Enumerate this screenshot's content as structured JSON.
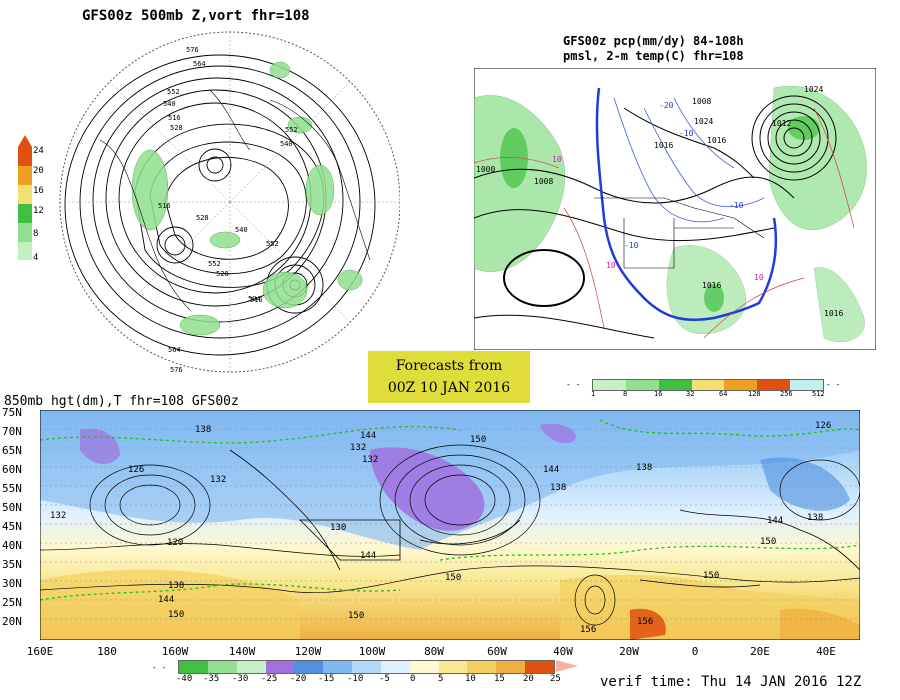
{
  "panels": {
    "top_left": {
      "title": "GFS00z  500mb Z,vort   fhr=108",
      "contour_labels": [
        "576",
        "564",
        "552",
        "540",
        "516",
        "528",
        "552",
        "540",
        "516",
        "528",
        "540",
        "552",
        "564",
        "552",
        "528",
        "516",
        "504",
        "576"
      ],
      "colorbar": {
        "ticks": [
          "24",
          "20",
          "16",
          "12",
          "8",
          "4"
        ],
        "colors": [
          "#e05010",
          "#f0a020",
          "#f4e070",
          "#40c040",
          "#90e090",
          "#c0f0c0"
        ]
      }
    },
    "top_right": {
      "title_line1": "GFS00z pcp(mm/dy) 84-108h",
      "title_line2": "pmsl, 2-m temp(C)  fhr=108",
      "contour_labels": [
        "1008",
        "1012",
        "1024",
        "1016",
        "1000",
        "1008",
        "1016",
        "1024",
        "1016",
        "1016",
        "-10",
        "-20",
        "-10",
        "-10",
        "10",
        "10",
        "10"
      ],
      "colorbar": {
        "ticks": [
          "1",
          "8",
          "16",
          "32",
          "64",
          "128",
          "256",
          "512"
        ],
        "colors": [
          "#c8f0c8",
          "#90e090",
          "#40c040",
          "#f4e070",
          "#f0a020",
          "#e05010",
          "#c0f0f0"
        ]
      }
    },
    "bottom": {
      "title": "850mb hgt(dm),T  fhr=108 GFS00z",
      "lat_labels": [
        "75N",
        "70N",
        "65N",
        "60N",
        "55N",
        "50N",
        "45N",
        "40N",
        "35N",
        "30N",
        "25N",
        "20N"
      ],
      "lon_labels": [
        "160E",
        "180",
        "160W",
        "140W",
        "120W",
        "100W",
        "80W",
        "60W",
        "40W",
        "20W",
        "0",
        "20E",
        "40E"
      ],
      "contour_labels": [
        "138",
        "144",
        "132",
        "150",
        "126",
        "132",
        "138",
        "144",
        "126",
        "132",
        "120",
        "130",
        "144",
        "138",
        "150",
        "132",
        "138",
        "144",
        "150",
        "156",
        "150",
        "150",
        "156",
        "138",
        "144",
        "150"
      ],
      "colorbar": {
        "ticks": [
          "-40",
          "-35",
          "-30",
          "-25",
          "-20",
          "-15",
          "-10",
          "-5",
          "0",
          "5",
          "10",
          "15",
          "20",
          "25"
        ],
        "colors": [
          "#40c040",
          "#90e090",
          "#c8f0c8",
          "#a070e0",
          "#5090e0",
          "#80b8f0",
          "#b0d8f8",
          "#dff0ff",
          "#fff8d0",
          "#f8e890",
          "#f4d060",
          "#f0b040",
          "#e05010"
        ]
      }
    }
  },
  "banner": {
    "line1": "Forecasts from",
    "line2": "00Z 10 JAN 2016"
  },
  "verif": "verif time: Thu 14 JAN 2016 12Z"
}
